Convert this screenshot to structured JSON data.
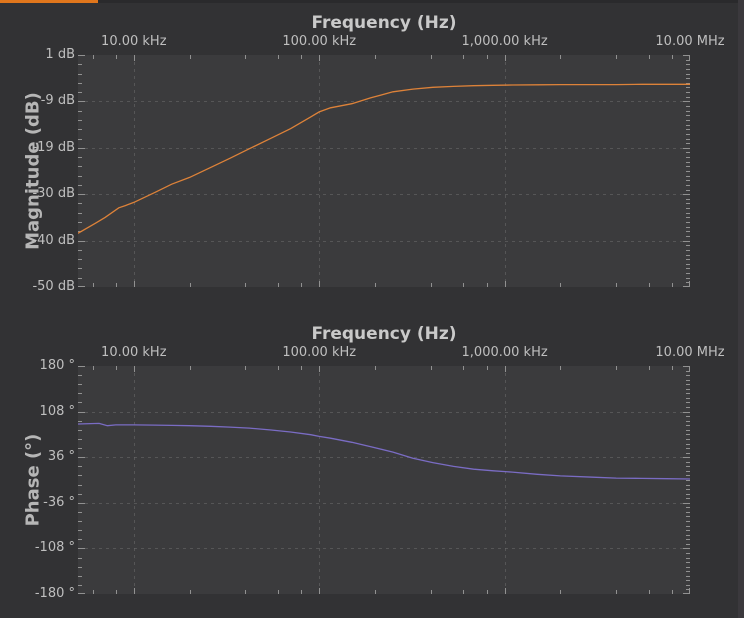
{
  "app": {
    "top_strip_color": "#e0761c",
    "background_color": "#323234",
    "plot_background_color": "#3b3b3d",
    "grid_color": "#6e6e6e",
    "tick_color": "#919191",
    "label_color": "#bfbfbf"
  },
  "chart_data": [
    {
      "type": "line",
      "title": "Frequency (Hz)",
      "ylabel": "Magnitude (dB)",
      "x_scale": "log",
      "x_range_hz": [
        5000,
        10000000
      ],
      "y_range": [
        -50,
        1
      ],
      "grid": "dashed",
      "legend_position": "none",
      "x_tick_labels": [
        "10.00 kHz",
        "100.00 kHz",
        "1,000.00 kHz",
        "10.00 MHz"
      ],
      "x_tick_values_hz": [
        10000,
        100000,
        1000000,
        10000000
      ],
      "y_tick_labels": [
        "1 dB",
        "-9 dB",
        "-19 dB",
        "-30 dB",
        "-40 dB",
        "-50 dB"
      ],
      "y_tick_values": [
        1,
        -9.2,
        -19.4,
        -29.6,
        -39.8,
        -50
      ],
      "series": [
        {
          "name": "magnitude",
          "color": "#dd8239",
          "x_hz": [
            5000,
            6200,
            7000,
            8300,
            9000,
            10000,
            13000,
            16000,
            20000,
            26000,
            33000,
            42000,
            55000,
            70000,
            90000,
            100000,
            115000,
            150000,
            190000,
            250000,
            320000,
            410000,
            530000,
            680000,
            870000,
            1100000,
            1500000,
            2000000,
            3000000,
            4000000,
            5500000,
            7500000,
            10000000
          ],
          "y": [
            -38.2,
            -36.0,
            -34.7,
            -32.6,
            -32.1,
            -31.4,
            -29.2,
            -27.4,
            -25.9,
            -23.7,
            -21.7,
            -19.6,
            -17.3,
            -15.2,
            -12.6,
            -11.5,
            -10.6,
            -9.7,
            -8.4,
            -7.1,
            -6.5,
            -6.1,
            -5.9,
            -5.75,
            -5.65,
            -5.6,
            -5.55,
            -5.5,
            -5.5,
            -5.5,
            -5.45,
            -5.45,
            -5.45
          ]
        }
      ]
    },
    {
      "type": "line",
      "title": "Frequency (Hz)",
      "ylabel": "Phase (°)",
      "x_scale": "log",
      "x_range_hz": [
        5000,
        10000000
      ],
      "y_range": [
        -180,
        180
      ],
      "grid": "dashed",
      "legend_position": "none",
      "x_tick_labels": [
        "10.00 kHz",
        "100.00 kHz",
        "1,000.00 kHz",
        "10.00 MHz"
      ],
      "x_tick_values_hz": [
        10000,
        100000,
        1000000,
        10000000
      ],
      "y_tick_labels": [
        "180 °",
        "108 °",
        "36 °",
        "-36 °",
        "-108 °",
        "-180 °"
      ],
      "y_tick_values": [
        180,
        108,
        36,
        -36,
        -108,
        -180
      ],
      "series": [
        {
          "name": "phase",
          "color": "#7a6cc4",
          "x_hz": [
            5000,
            6500,
            7200,
            8000,
            10000,
            13000,
            16000,
            20000,
            26000,
            33000,
            42000,
            55000,
            70000,
            90000,
            100000,
            115000,
            150000,
            190000,
            250000,
            320000,
            410000,
            530000,
            680000,
            870000,
            1100000,
            1500000,
            2000000,
            3000000,
            4000000,
            5500000,
            7500000,
            10000000
          ],
          "y": [
            88.4,
            89.3,
            85.8,
            87.0,
            87.0,
            86.7,
            86.2,
            85.7,
            84.8,
            83.6,
            81.9,
            79.0,
            75.8,
            71.5,
            68.9,
            66.0,
            59.5,
            52.5,
            44.0,
            34.5,
            27.5,
            21.5,
            17.0,
            14.5,
            12.5,
            9.0,
            6.5,
            4.5,
            3.0,
            2.5,
            2.0,
            1.5
          ]
        }
      ]
    }
  ]
}
